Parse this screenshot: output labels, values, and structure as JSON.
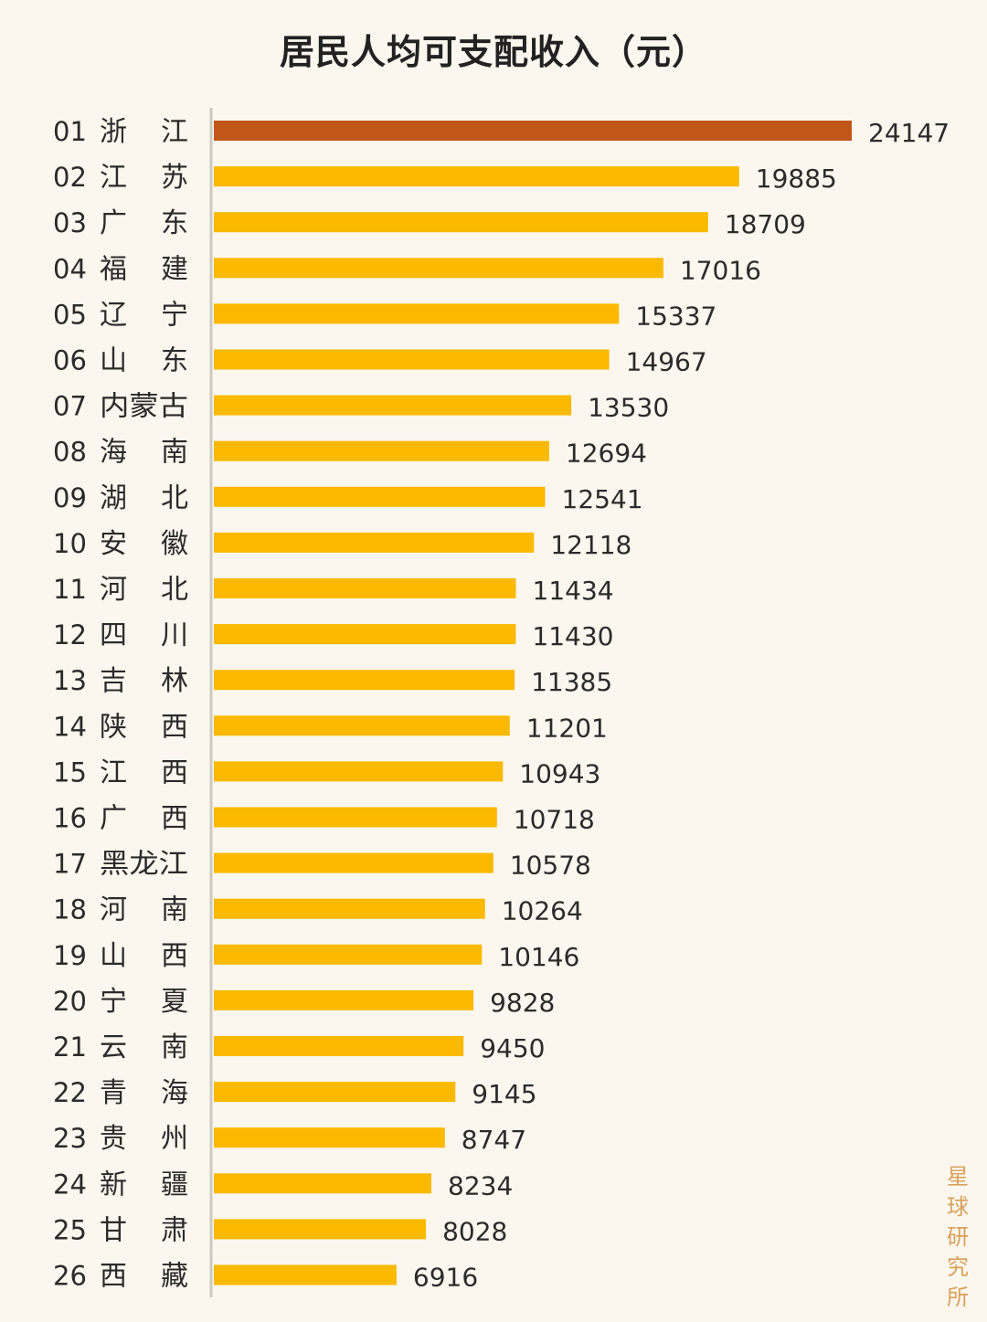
{
  "chart_data": {
    "type": "bar",
    "orientation": "horizontal",
    "title": "居民人均可支配收入（元）",
    "xlabel": "",
    "ylabel": "",
    "xlim": [
      0,
      24147
    ],
    "grid": false,
    "categories": [
      {
        "rank": "01",
        "name": [
          "浙",
          "江"
        ]
      },
      {
        "rank": "02",
        "name": [
          "江",
          "苏"
        ]
      },
      {
        "rank": "03",
        "name": [
          "广",
          "东"
        ]
      },
      {
        "rank": "04",
        "name": [
          "福",
          "建"
        ]
      },
      {
        "rank": "05",
        "name": [
          "辽",
          "宁"
        ]
      },
      {
        "rank": "06",
        "name": [
          "山",
          "东"
        ]
      },
      {
        "rank": "07",
        "name": [
          "内蒙古"
        ]
      },
      {
        "rank": "08",
        "name": [
          "海",
          "南"
        ]
      },
      {
        "rank": "09",
        "name": [
          "湖",
          "北"
        ]
      },
      {
        "rank": "10",
        "name": [
          "安",
          "徽"
        ]
      },
      {
        "rank": "11",
        "name": [
          "河",
          "北"
        ]
      },
      {
        "rank": "12",
        "name": [
          "四",
          "川"
        ]
      },
      {
        "rank": "13",
        "name": [
          "吉",
          "林"
        ]
      },
      {
        "rank": "14",
        "name": [
          "陕",
          "西"
        ]
      },
      {
        "rank": "15",
        "name": [
          "江",
          "西"
        ]
      },
      {
        "rank": "16",
        "name": [
          "广",
          "西"
        ]
      },
      {
        "rank": "17",
        "name": [
          "黑龙江"
        ]
      },
      {
        "rank": "18",
        "name": [
          "河",
          "南"
        ]
      },
      {
        "rank": "19",
        "name": [
          "山",
          "西"
        ]
      },
      {
        "rank": "20",
        "name": [
          "宁",
          "夏"
        ]
      },
      {
        "rank": "21",
        "name": [
          "云",
          "南"
        ]
      },
      {
        "rank": "22",
        "name": [
          "青",
          "海"
        ]
      },
      {
        "rank": "23",
        "name": [
          "贵",
          "州"
        ]
      },
      {
        "rank": "24",
        "name": [
          "新",
          "疆"
        ]
      },
      {
        "rank": "25",
        "name": [
          "甘",
          "肃"
        ]
      },
      {
        "rank": "26",
        "name": [
          "西",
          "藏"
        ]
      }
    ],
    "values": [
      24147,
      19885,
      18709,
      17016,
      15337,
      14967,
      13530,
      12694,
      12541,
      12118,
      11434,
      11430,
      11385,
      11201,
      10943,
      10718,
      10578,
      10264,
      10146,
      9828,
      9450,
      9145,
      8747,
      8234,
      8028,
      6916
    ],
    "colors": {
      "highlight": "#c0561a",
      "bar": "#fbb900",
      "axis": "#cfcac0",
      "text": "#2b2b2b"
    }
  },
  "watermark": "星球研究所"
}
